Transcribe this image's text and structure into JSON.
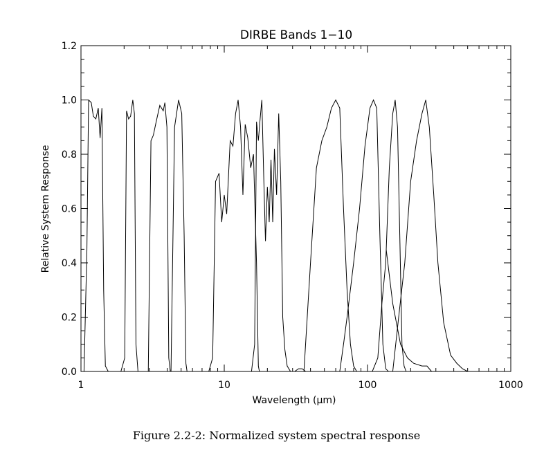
{
  "chart_data": {
    "type": "line",
    "title": "DIRBE Bands 1−10",
    "xlabel": "Wavelength (μm)",
    "ylabel": "Relative System Response",
    "x_scale": "log",
    "xlim": [
      1,
      1000
    ],
    "ylim": [
      0,
      1.2
    ],
    "x_ticks": [
      1,
      10,
      100,
      1000
    ],
    "x_tick_labels": [
      "1",
      "10",
      "100",
      "1000"
    ],
    "y_ticks": [
      0.0,
      0.2,
      0.4,
      0.6,
      0.8,
      1.0,
      1.2
    ],
    "y_tick_labels": [
      "0.0",
      "0.2",
      "0.4",
      "0.6",
      "0.8",
      "1.0",
      "1.2"
    ],
    "grid": false,
    "series": [
      {
        "points": [
          [
            1.05,
            0
          ],
          [
            1.1,
            0.45
          ],
          [
            1.13,
            1.0
          ],
          [
            1.18,
            0.99
          ],
          [
            1.22,
            0.94
          ],
          [
            1.27,
            0.93
          ],
          [
            1.32,
            0.97
          ],
          [
            1.36,
            0.86
          ],
          [
            1.4,
            0.97
          ],
          [
            1.44,
            0.3
          ],
          [
            1.48,
            0.02
          ],
          [
            1.55,
            0
          ],
          [
            1.7,
            0
          ]
        ]
      },
      {
        "points": [
          [
            1.9,
            0
          ],
          [
            2.02,
            0.05
          ],
          [
            2.08,
            0.96
          ],
          [
            2.15,
            0.93
          ],
          [
            2.22,
            0.94
          ],
          [
            2.3,
            1.0
          ],
          [
            2.36,
            0.95
          ],
          [
            2.42,
            0.1
          ],
          [
            2.5,
            0
          ]
        ]
      },
      {
        "points": [
          [
            2.95,
            0
          ],
          [
            3.08,
            0.85
          ],
          [
            3.2,
            0.87
          ],
          [
            3.35,
            0.92
          ],
          [
            3.55,
            0.98
          ],
          [
            3.75,
            0.96
          ],
          [
            3.85,
            0.99
          ],
          [
            3.98,
            0.9
          ],
          [
            4.1,
            0.05
          ],
          [
            4.2,
            0
          ]
        ]
      },
      {
        "points": [
          [
            4.25,
            0
          ],
          [
            4.5,
            0.9
          ],
          [
            4.8,
            1.0
          ],
          [
            5.05,
            0.95
          ],
          [
            5.25,
            0.5
          ],
          [
            5.4,
            0.03
          ],
          [
            5.5,
            0
          ]
        ]
      },
      {
        "points": [
          [
            7.8,
            0
          ],
          [
            8.3,
            0.05
          ],
          [
            8.7,
            0.7
          ],
          [
            9.2,
            0.73
          ],
          [
            9.6,
            0.55
          ],
          [
            10.0,
            0.65
          ],
          [
            10.4,
            0.58
          ],
          [
            11.0,
            0.85
          ],
          [
            11.5,
            0.83
          ],
          [
            12.0,
            0.95
          ],
          [
            12.5,
            1.0
          ],
          [
            13.0,
            0.9
          ],
          [
            13.5,
            0.65
          ],
          [
            14.0,
            0.91
          ],
          [
            14.6,
            0.86
          ],
          [
            15.3,
            0.75
          ],
          [
            16.0,
            0.8
          ],
          [
            16.8,
            0.4
          ],
          [
            17.3,
            0.02
          ],
          [
            17.6,
            0
          ]
        ]
      },
      {
        "points": [
          [
            15.5,
            0
          ],
          [
            16.3,
            0.1
          ],
          [
            16.8,
            0.92
          ],
          [
            17.3,
            0.85
          ],
          [
            17.8,
            0.93
          ],
          [
            18.3,
            1.0
          ],
          [
            18.9,
            0.7
          ],
          [
            19.4,
            0.48
          ],
          [
            20.0,
            0.68
          ],
          [
            20.6,
            0.55
          ],
          [
            21.2,
            0.78
          ],
          [
            21.8,
            0.55
          ],
          [
            22.4,
            0.82
          ],
          [
            23.2,
            0.65
          ],
          [
            24.0,
            0.95
          ],
          [
            24.8,
            0.7
          ],
          [
            25.6,
            0.2
          ],
          [
            26.5,
            0.08
          ],
          [
            27.5,
            0.02
          ],
          [
            29,
            0
          ],
          [
            31,
            0
          ],
          [
            33,
            0.01
          ],
          [
            35,
            0.01
          ],
          [
            37,
            0
          ]
        ]
      },
      {
        "points": [
          [
            36,
            0
          ],
          [
            40,
            0.4
          ],
          [
            44,
            0.75
          ],
          [
            48,
            0.85
          ],
          [
            52,
            0.9
          ],
          [
            56,
            0.97
          ],
          [
            60,
            1.0
          ],
          [
            64,
            0.97
          ],
          [
            68,
            0.6
          ],
          [
            72,
            0.3
          ],
          [
            76,
            0.1
          ],
          [
            80,
            0.02
          ],
          [
            84,
            0
          ]
        ]
      },
      {
        "points": [
          [
            64,
            0
          ],
          [
            68,
            0.1
          ],
          [
            72,
            0.2
          ],
          [
            80,
            0.4
          ],
          [
            88,
            0.6
          ],
          [
            96,
            0.83
          ],
          [
            104,
            0.97
          ],
          [
            110,
            1.0
          ],
          [
            116,
            0.97
          ],
          [
            122,
            0.5
          ],
          [
            128,
            0.1
          ],
          [
            134,
            0.01
          ],
          [
            140,
            0
          ]
        ]
      },
      {
        "points": [
          [
            108,
            0
          ],
          [
            118,
            0.05
          ],
          [
            126,
            0.25
          ],
          [
            134,
            0.4
          ],
          [
            142,
            0.75
          ],
          [
            150,
            0.95
          ],
          [
            156,
            1.0
          ],
          [
            162,
            0.9
          ],
          [
            168,
            0.5
          ],
          [
            174,
            0.1
          ],
          [
            180,
            0.02
          ],
          [
            186,
            0
          ]
        ]
      },
      {
        "points": [
          [
            150,
            0
          ],
          [
            165,
            0.2
          ],
          [
            182,
            0.4
          ],
          [
            200,
            0.7
          ],
          [
            220,
            0.85
          ],
          [
            240,
            0.95
          ],
          [
            255,
            1.0
          ],
          [
            270,
            0.9
          ],
          [
            290,
            0.65
          ],
          [
            310,
            0.4
          ],
          [
            340,
            0.18
          ],
          [
            380,
            0.06
          ],
          [
            420,
            0.03
          ],
          [
            460,
            0.01
          ],
          [
            500,
            0
          ]
        ]
      },
      {
        "points": [
          [
            135,
            0.45
          ],
          [
            150,
            0.25
          ],
          [
            170,
            0.1
          ],
          [
            190,
            0.05
          ],
          [
            210,
            0.03
          ],
          [
            240,
            0.02
          ],
          [
            260,
            0.02
          ],
          [
            280,
            0
          ]
        ]
      }
    ]
  },
  "caption": "Figure 2.2-2: Normalized system spectral response"
}
